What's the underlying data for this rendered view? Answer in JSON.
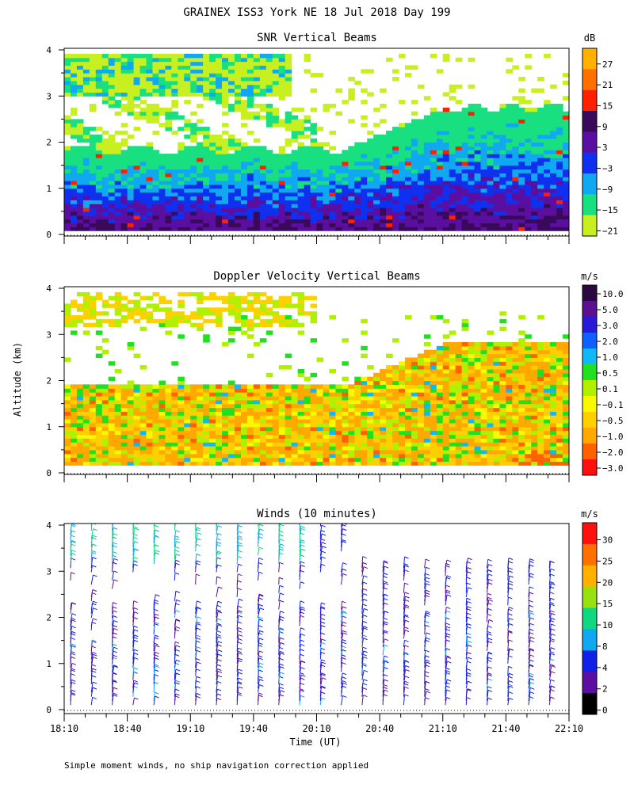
{
  "header": {
    "title": "GRAINEX ISS3 York NE  18 Jul 2018 Day 199"
  },
  "footer": {
    "note": "Simple moment winds, no ship navigation correction applied"
  },
  "shared": {
    "ylabel": "Altitude (km)",
    "xlabel": "Time (UT)",
    "x_ticks": [
      "18:10",
      "18:40",
      "19:10",
      "19:40",
      "20:10",
      "20:40",
      "21:10",
      "21:40",
      "22:10"
    ],
    "y_ticks": [
      "0",
      "1",
      "2",
      "3",
      "4"
    ]
  },
  "chart_data": [
    {
      "type": "heatmap",
      "title": "SNR Vertical Beams",
      "xlabel": "",
      "ylabel": "Altitude (km)",
      "xlim": [
        "18:10",
        "22:10"
      ],
      "ylim": [
        0,
        4
      ],
      "colorbar": {
        "unit": "dB",
        "labels": [
          "27",
          "21",
          "15",
          "9",
          "3",
          "−3",
          "−9",
          "−15",
          "−21"
        ],
        "colors": [
          "#ffb000",
          "#ff7000",
          "#ff2000",
          "#3a0a5a",
          "#5a0fa0",
          "#1030f0",
          "#10a8f0",
          "#18e080",
          "#c8f020"
        ]
      }
    },
    {
      "type": "heatmap",
      "title": "Doppler Velocity Vertical Beams",
      "xlabel": "",
      "ylabel": "Altitude (km)",
      "xlim": [
        "18:10",
        "22:10"
      ],
      "ylim": [
        0,
        4
      ],
      "colorbar": {
        "unit": "m/s",
        "labels": [
          "10.0",
          "5.0",
          "3.0",
          "2.0",
          "1.0",
          "0.5",
          "0.1",
          "−0.1",
          "−0.5",
          "−1.0",
          "−2.0",
          "−3.0"
        ],
        "colors": [
          "#2a0840",
          "#5a1090",
          "#2818d8",
          "#1060ff",
          "#10b8f8",
          "#20e020",
          "#b0f000",
          "#f8f800",
          "#ffd000",
          "#ffa800",
          "#ff6000",
          "#ff1010"
        ]
      }
    },
    {
      "type": "scatter",
      "title": "Winds (10 minutes)",
      "xlabel": "Time (UT)",
      "ylabel": "Altitude (km)",
      "xlim": [
        "18:10",
        "22:10"
      ],
      "ylim": [
        0,
        4
      ],
      "colorbar": {
        "unit": "m/s",
        "labels": [
          "30",
          "25",
          "20",
          "15",
          "10",
          "8",
          "4",
          "2",
          "0"
        ],
        "colors": [
          "#ff1010",
          "#ff7000",
          "#ffb000",
          "#98e010",
          "#10d880",
          "#10a8f0",
          "#1020e8",
          "#5a0fa0",
          "#000000"
        ]
      }
    }
  ]
}
